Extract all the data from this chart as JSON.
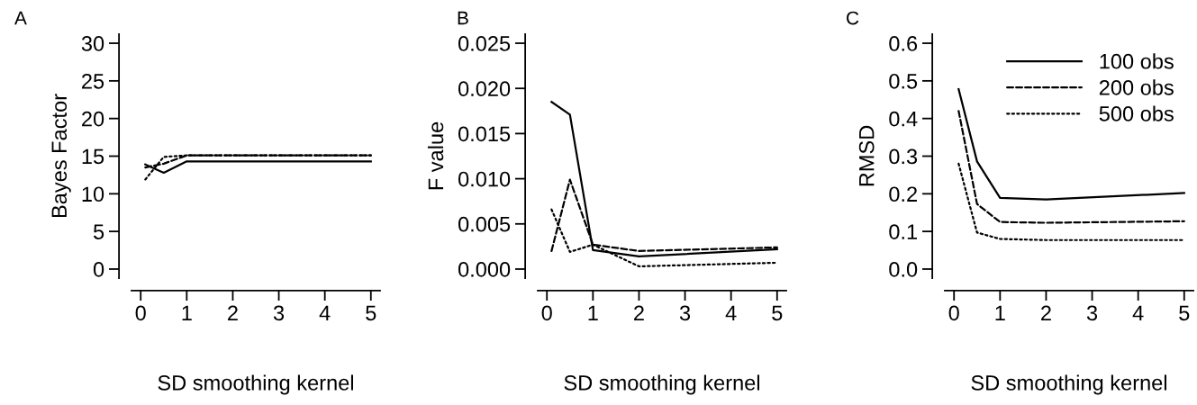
{
  "chart_data": [
    {
      "type": "line",
      "annotations": [
        "A"
      ],
      "xlabel": "SD smoothing kernel",
      "ylabel": "Bayes Factor",
      "x": [
        0.1,
        0.5,
        1,
        2,
        5
      ],
      "xlim": [
        -0.2,
        5.2
      ],
      "xticks": [
        0,
        1,
        2,
        3,
        4,
        5
      ],
      "ylim": [
        -1.2,
        31.2
      ],
      "yticks": [
        0,
        5,
        10,
        15,
        20,
        25,
        30
      ],
      "grid": false,
      "legend": false,
      "marker": "none",
      "series": [
        {
          "color": "#000000",
          "line_style": "solid",
          "values": [
            13.9,
            12.8,
            14.3,
            14.3,
            14.3
          ]
        },
        {
          "color": "#000000",
          "line_style": "dashed",
          "values": [
            13.5,
            14.0,
            15.1,
            15.1,
            15.1
          ]
        },
        {
          "color": "#000000",
          "line_style": "dotted",
          "values": [
            11.9,
            14.9,
            15.1,
            15.1,
            15.1
          ]
        }
      ]
    },
    {
      "type": "line",
      "annotations": [
        "B"
      ],
      "xlabel": "SD smoothing kernel",
      "ylabel": "F value",
      "x": [
        0.1,
        0.5,
        1,
        2,
        5
      ],
      "xlim": [
        -0.2,
        5.2
      ],
      "xticks": [
        0,
        1,
        2,
        3,
        4,
        5
      ],
      "ylim": [
        -0.001,
        0.026
      ],
      "yticks": [
        {
          "value": 0,
          "label": "0.000"
        },
        {
          "value": 0.005,
          "label": "0.005"
        },
        {
          "value": 0.01,
          "label": "0.010"
        },
        {
          "value": 0.015,
          "label": "0.015"
        },
        {
          "value": 0.02,
          "label": "0.020"
        },
        {
          "value": 0.025,
          "label": "0.025"
        }
      ],
      "grid": false,
      "legend": false,
      "marker": "none",
      "series": [
        {
          "color": "#000000",
          "line_style": "solid",
          "values": [
            0.0185,
            0.0171,
            0.0021,
            0.0014,
            0.0022
          ]
        },
        {
          "color": "#000000",
          "line_style": "dashed",
          "values": [
            0.002,
            0.0099,
            0.0027,
            0.002,
            0.0024
          ]
        },
        {
          "color": "#000000",
          "line_style": "dotted",
          "values": [
            0.0066,
            0.0019,
            0.0027,
            0.0003,
            0.0007
          ]
        }
      ]
    },
    {
      "type": "line",
      "annotations": [
        "C"
      ],
      "xlabel": "SD smoothing kernel",
      "ylabel": "RMSD",
      "x": [
        0.1,
        0.5,
        1,
        2,
        5
      ],
      "xlim": [
        -0.2,
        5.2
      ],
      "xticks": [
        0,
        1,
        2,
        3,
        4,
        5
      ],
      "ylim": [
        -0.024,
        0.624
      ],
      "yticks": [
        {
          "value": 0,
          "label": "0.0"
        },
        {
          "value": 0.1,
          "label": "0.1"
        },
        {
          "value": 0.2,
          "label": "0.2"
        },
        {
          "value": 0.3,
          "label": "0.3"
        },
        {
          "value": 0.4,
          "label": "0.4"
        },
        {
          "value": 0.5,
          "label": "0.5"
        },
        {
          "value": 0.6,
          "label": "0.6"
        }
      ],
      "grid": false,
      "legend": "top right",
      "marker": "none",
      "series": [
        {
          "name": "100 obs",
          "color": "#000000",
          "line_style": "solid",
          "values": [
            0.478,
            0.286,
            0.189,
            0.185,
            0.202
          ]
        },
        {
          "name": "200 obs",
          "color": "#000000",
          "line_style": "dashed",
          "values": [
            0.42,
            0.173,
            0.125,
            0.123,
            0.127
          ]
        },
        {
          "name": "500 obs",
          "color": "#000000",
          "line_style": "dotted",
          "values": [
            0.28,
            0.097,
            0.08,
            0.077,
            0.077
          ]
        }
      ]
    }
  ]
}
